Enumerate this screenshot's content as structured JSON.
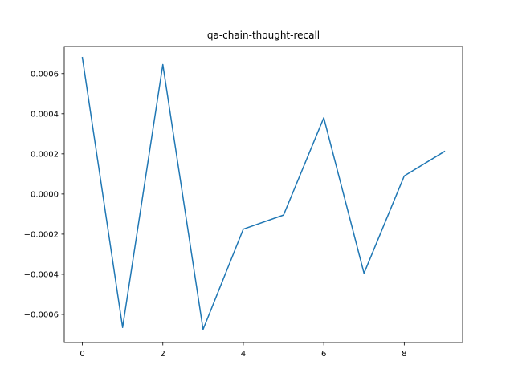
{
  "chart_data": {
    "type": "line",
    "title": "qa-chain-thought-recall",
    "xlabel": "",
    "ylabel": "",
    "x": [
      0,
      1,
      2,
      3,
      4,
      5,
      6,
      7,
      8,
      9
    ],
    "series": [
      {
        "values": [
          0.00068,
          -0.000665,
          0.000645,
          -0.000675,
          -0.000175,
          -0.000105,
          0.00038,
          -0.000395,
          9e-05,
          0.000212
        ],
        "color": "#1f77b4"
      }
    ],
    "xlim": [
      -0.45,
      9.45
    ],
    "ylim": [
      -0.00074,
      0.000735
    ],
    "xticks": [
      0,
      2,
      4,
      6,
      8
    ],
    "xtick_labels": [
      "0",
      "2",
      "4",
      "6",
      "8"
    ],
    "yticks": [
      -0.0006,
      -0.0004,
      -0.0002,
      0.0,
      0.0002,
      0.0004,
      0.0006
    ],
    "ytick_labels": [
      "−0.0006",
      "−0.0004",
      "−0.0002",
      "0.0000",
      "0.0002",
      "0.0004",
      "0.0006"
    ],
    "grid": false,
    "legend": "none"
  }
}
